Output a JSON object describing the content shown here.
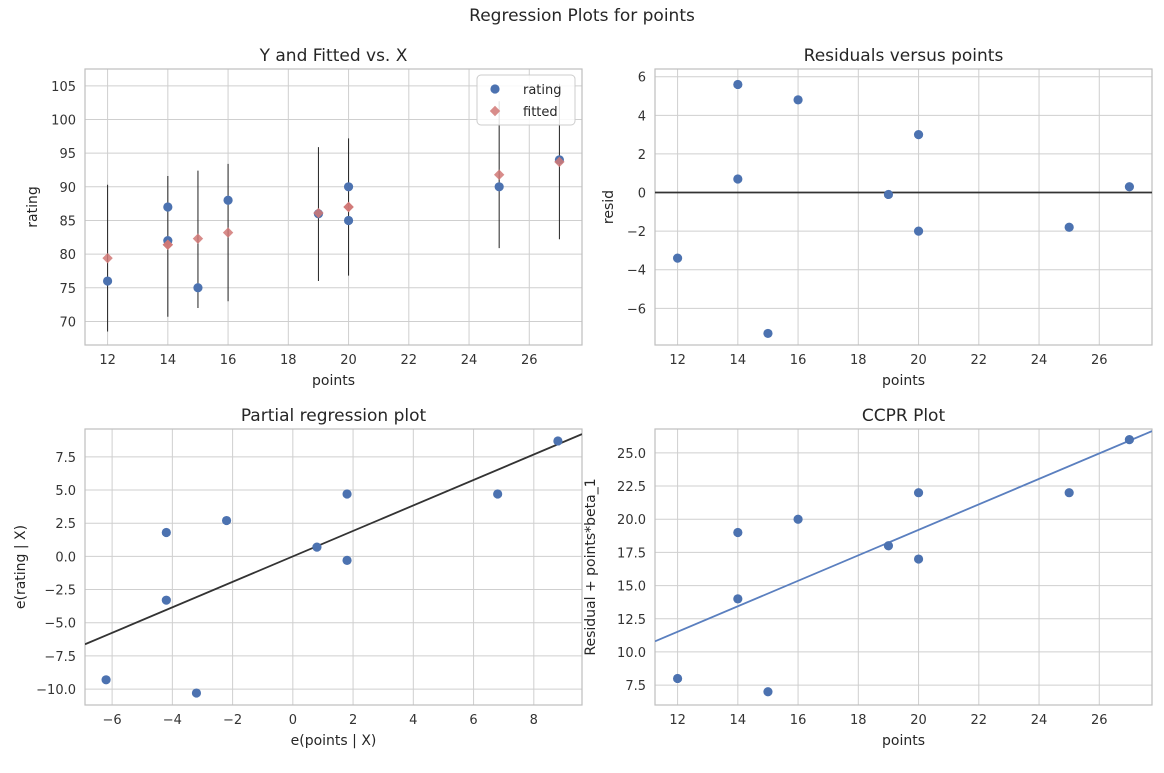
{
  "suptitle": "Regression Plots for points",
  "colors": {
    "blue": "#4C72B0",
    "red": "#DD8452",
    "fitted": "#D17875",
    "line_dark": "#333333",
    "line_blue": "#5A7FBF",
    "grid": "#CFCFCF",
    "spine": "#BFBFBF"
  },
  "chart_data": [
    {
      "id": "yfitted",
      "type": "scatter",
      "title": "Y and Fitted vs. X",
      "xlabel": "points",
      "ylabel": "rating",
      "xlim": [
        11.25,
        27.75
      ],
      "ylim": [
        66.5,
        107.5
      ],
      "xticks": [
        12,
        14,
        16,
        18,
        20,
        22,
        24,
        26
      ],
      "xtick_labels": [
        "12",
        "14",
        "16",
        "18",
        "20",
        "22",
        "24",
        "26"
      ],
      "yticks": [
        70,
        75,
        80,
        85,
        90,
        95,
        100,
        105
      ],
      "ytick_labels": [
        "70",
        "75",
        "80",
        "85",
        "90",
        "95",
        "100",
        "105"
      ],
      "grid": true,
      "legend": "top-right",
      "legend_entries": [
        "rating",
        "fitted"
      ],
      "series": [
        {
          "name": "rating",
          "marker": "circle",
          "x": [
            12,
            14,
            14,
            15,
            16,
            19,
            20,
            20,
            25,
            27
          ],
          "y": [
            76,
            87,
            82,
            75,
            88,
            86,
            90,
            85,
            90,
            94
          ]
        },
        {
          "name": "fitted",
          "marker": "diamond",
          "x": [
            12,
            14,
            14,
            15,
            16,
            19,
            20,
            20,
            25,
            27
          ],
          "y": [
            79.4,
            81.4,
            81.4,
            82.3,
            83.2,
            86.1,
            87.0,
            87.0,
            91.8,
            93.7
          ]
        }
      ],
      "errorbars": [
        {
          "x": 12,
          "low": 68.5,
          "high": 90.3
        },
        {
          "x": 14,
          "low": 70.7,
          "high": 91.6
        },
        {
          "x": 15,
          "low": 72.0,
          "high": 92.4
        },
        {
          "x": 16,
          "low": 73.0,
          "high": 93.4
        },
        {
          "x": 19,
          "low": 76.0,
          "high": 95.9
        },
        {
          "x": 20,
          "low": 76.8,
          "high": 97.2
        },
        {
          "x": 25,
          "low": 80.9,
          "high": 102.7
        },
        {
          "x": 27,
          "low": 82.2,
          "high": 105.3
        }
      ]
    },
    {
      "id": "resid",
      "type": "scatter",
      "title": "Residuals versus points",
      "xlabel": "points",
      "ylabel": "resid",
      "xlim": [
        11.25,
        27.75
      ],
      "ylim": [
        -7.9,
        6.4
      ],
      "xticks": [
        12,
        14,
        16,
        18,
        20,
        22,
        24,
        26
      ],
      "xtick_labels": [
        "12",
        "14",
        "16",
        "18",
        "20",
        "22",
        "24",
        "26"
      ],
      "yticks": [
        -6,
        -4,
        -2,
        0,
        2,
        4,
        6
      ],
      "ytick_labels": [
        "−6",
        "−4",
        "−2",
        "0",
        "2",
        "4",
        "6"
      ],
      "grid": true,
      "hline": 0,
      "series": [
        {
          "marker": "circle",
          "x": [
            12,
            14,
            14,
            15,
            16,
            19,
            20,
            20,
            25,
            27
          ],
          "y": [
            -3.4,
            5.6,
            0.7,
            -7.3,
            4.8,
            -0.1,
            3.0,
            -2.0,
            -1.8,
            0.3
          ]
        }
      ]
    },
    {
      "id": "partreg",
      "type": "scatter",
      "title": "Partial regression plot",
      "xlabel": "e(points | X)",
      "ylabel": "e(rating | X)",
      "xlim": [
        -6.9,
        9.6
      ],
      "ylim": [
        -11.2,
        9.6
      ],
      "xticks": [
        -6,
        -4,
        -2,
        0,
        2,
        4,
        6,
        8
      ],
      "xtick_labels": [
        "−6",
        "−4",
        "−2",
        "0",
        "2",
        "4",
        "6",
        "8"
      ],
      "yticks": [
        -10,
        -7.5,
        -5,
        -2.5,
        0,
        2.5,
        5,
        7.5
      ],
      "ytick_labels": [
        "−10.0",
        "−7.5",
        "−5.0",
        "−2.5",
        "0.0",
        "2.5",
        "5.0",
        "7.5"
      ],
      "grid": true,
      "fit_line": {
        "slope": 0.96,
        "intercept": 0.0
      },
      "series": [
        {
          "marker": "circle",
          "x": [
            -6.2,
            -4.2,
            -4.2,
            -3.2,
            -2.2,
            0.8,
            1.8,
            1.8,
            6.8,
            8.8
          ],
          "y": [
            -9.3,
            1.8,
            -3.3,
            -10.3,
            2.7,
            0.7,
            4.7,
            -0.3,
            4.7,
            8.7
          ]
        }
      ]
    },
    {
      "id": "ccpr",
      "type": "scatter",
      "title": "CCPR Plot",
      "xlabel": "points",
      "ylabel": "Residual + points*beta_1",
      "xlim": [
        11.25,
        27.75
      ],
      "ylim": [
        6.0,
        26.8
      ],
      "xticks": [
        12,
        14,
        16,
        18,
        20,
        22,
        24,
        26
      ],
      "xtick_labels": [
        "12",
        "14",
        "16",
        "18",
        "20",
        "22",
        "24",
        "26"
      ],
      "yticks": [
        7.5,
        10,
        12.5,
        15,
        17.5,
        20,
        22.5,
        25
      ],
      "ytick_labels": [
        "7.5",
        "10.0",
        "12.5",
        "15.0",
        "17.5",
        "20.0",
        "22.5",
        "25.0"
      ],
      "grid": true,
      "fit_line": {
        "slope": 0.96,
        "intercept": 0.0
      },
      "series": [
        {
          "marker": "circle",
          "x": [
            12,
            14,
            14,
            15,
            16,
            19,
            20,
            20,
            25,
            27
          ],
          "y": [
            8.0,
            19.0,
            14.0,
            7.0,
            20.0,
            18.0,
            22.0,
            17.0,
            22.0,
            26.0
          ]
        }
      ]
    }
  ]
}
